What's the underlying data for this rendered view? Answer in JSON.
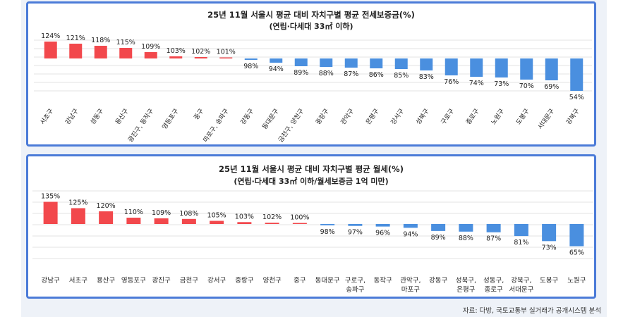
{
  "colors": {
    "pos": "#f2484c",
    "neg": "#4a8fdf",
    "border": "#4b7bd8",
    "grid": "#e3e3e3"
  },
  "source": "자료: 다방, 국토교통부 실거래가 공개시스템 분석",
  "chart_data": [
    {
      "type": "bar",
      "title": "25년 11월 서울시 평균 대비 자치구별 평균 전세보증금(%)",
      "subtitle": "(연립·다세대 33㎡ 이하)",
      "baseline": 100,
      "grid": true,
      "categories": [
        "서초구",
        "강남구",
        "성동구",
        "용산구",
        "광진구, 동작구",
        "영등포구",
        "중구",
        "마포구, 송파구",
        "강동구",
        "동대문구",
        "금천구, 양천구",
        "중랑구",
        "관악구",
        "은평구",
        "강서구",
        "성북구",
        "구로구",
        "종로구",
        "노원구",
        "도봉구",
        "서대문구",
        "강북구"
      ],
      "values": [
        124,
        121,
        118,
        115,
        109,
        103,
        102,
        101,
        98,
        94,
        89,
        88,
        87,
        86,
        85,
        83,
        76,
        74,
        73,
        70,
        69,
        54
      ],
      "labels": [
        "124%",
        "121%",
        "118%",
        "115%",
        "109%",
        "103%",
        "102%",
        "101%",
        "98%",
        "94%",
        "89%",
        "88%",
        "87%",
        "86%",
        "85%",
        "83%",
        "76%",
        "74%",
        "73%",
        "70%",
        "69%",
        "54%"
      ]
    },
    {
      "type": "bar",
      "title": "25년 11월 서울시 평균 대비 자치구별 평균 월세(%)",
      "subtitle": "(연립·다세대 33㎡ 이하/월세보증금 1억 미만)",
      "baseline": 100,
      "grid": true,
      "categories": [
        "강남구",
        "서초구",
        "용산구",
        "영등포구",
        "광진구",
        "금천구",
        "강서구",
        "중랑구",
        "양천구",
        "중구",
        "동대문구",
        "구로구, 송파구",
        "동작구",
        "관악구, 마포구",
        "강동구",
        "성북구, 은평구",
        "성동구, 종로구",
        "강북구, 서대문구",
        "도봉구",
        "노원구"
      ],
      "values": [
        135,
        125,
        120,
        110,
        109,
        108,
        105,
        103,
        102,
        100,
        98,
        97,
        96,
        94,
        89,
        88,
        87,
        81,
        73,
        65
      ],
      "labels": [
        "135%",
        "125%",
        "120%",
        "110%",
        "109%",
        "108%",
        "105%",
        "103%",
        "102%",
        "100%",
        "98%",
        "97%",
        "96%",
        "94%",
        "89%",
        "88%",
        "87%",
        "81%",
        "73%",
        "65%"
      ]
    }
  ]
}
